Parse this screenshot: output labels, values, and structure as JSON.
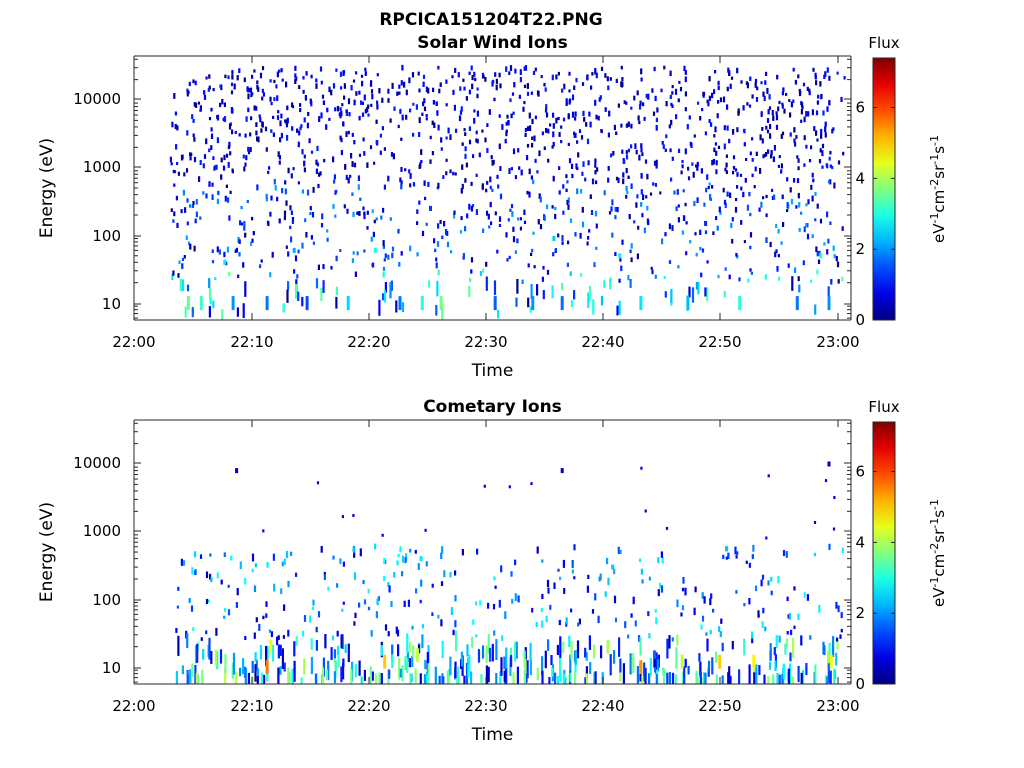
{
  "figure": {
    "title": "RPCICA151204T22.PNG"
  },
  "chart_data": [
    {
      "type": "heatmap",
      "title": "Solar Wind Ions",
      "xlabel": "Time",
      "ylabel": "Energy (eV)",
      "x_ticks": [
        "22:00",
        "22:10",
        "22:20",
        "22:30",
        "22:40",
        "22:50",
        "23:00"
      ],
      "x_range_minutes": [
        0,
        61
      ],
      "y_ticks": [
        "10",
        "100",
        "1000",
        "10000"
      ],
      "y_range_log10": [
        0.75,
        4.65
      ],
      "y_scale": "log",
      "colorbar": {
        "label": "Flux",
        "units": "eV-1cm-2sr-1s-1",
        "ticks": [
          "0",
          "2",
          "4",
          "6"
        ],
        "range": [
          0,
          7.4
        ],
        "colormap": "jet"
      },
      "data_start_minute": 3,
      "points": [
        {
          "t": 4.5,
          "e": 10,
          "v": 3.5
        },
        {
          "t": 5.6,
          "e": 10,
          "v": 3.2
        },
        {
          "t": 8.3,
          "e": 10,
          "v": 2.0
        },
        {
          "t": 11.2,
          "e": 10,
          "v": 1.8
        },
        {
          "t": 14.6,
          "e": 10,
          "v": 1.5
        },
        {
          "t": 18.1,
          "e": 10,
          "v": 2.5
        },
        {
          "t": 22.5,
          "e": 10,
          "v": 1.8
        },
        {
          "t": 24.4,
          "e": 10,
          "v": 3.0
        },
        {
          "t": 26.0,
          "e": 10,
          "v": 3.6
        },
        {
          "t": 30.6,
          "e": 10,
          "v": 1.6
        },
        {
          "t": 33.8,
          "e": 10,
          "v": 2.0
        },
        {
          "t": 36.3,
          "e": 10,
          "v": 1.7
        },
        {
          "t": 43.0,
          "e": 10,
          "v": 2.6
        },
        {
          "t": 47.0,
          "e": 10,
          "v": 2.3
        },
        {
          "t": 51.4,
          "e": 10,
          "v": 3.0
        },
        {
          "t": 56.3,
          "e": 10,
          "v": 1.8
        },
        {
          "t": 59.0,
          "e": 10,
          "v": 2.0
        },
        {
          "t": 7.6,
          "e": 40,
          "v": 2.6
        },
        {
          "t": 13.5,
          "e": 60,
          "v": 2.2
        },
        {
          "t": 20.4,
          "e": 60,
          "v": 2.9
        },
        {
          "t": 35.6,
          "e": 90,
          "v": 2.4
        },
        {
          "t": 41.2,
          "e": 50,
          "v": 2.7
        },
        {
          "t": 58.3,
          "e": 50,
          "v": 3.1
        },
        {
          "t": 25.1,
          "e": 250,
          "v": 1.3
        },
        {
          "t": 37.4,
          "e": 3000,
          "v": 0.6
        },
        {
          "t": 48.5,
          "e": 150,
          "v": 1.2
        }
      ]
    },
    {
      "type": "heatmap",
      "title": "Cometary Ions",
      "xlabel": "Time",
      "ylabel": "Energy (eV)",
      "x_ticks": [
        "22:00",
        "22:10",
        "22:20",
        "22:30",
        "22:40",
        "22:50",
        "23:00"
      ],
      "x_range_minutes": [
        0,
        61
      ],
      "y_ticks": [
        "10",
        "100",
        "1000",
        "10000"
      ],
      "y_range_log10": [
        0.75,
        4.65
      ],
      "y_scale": "log",
      "colorbar": {
        "label": "Flux",
        "units": "eV-1cm-2sr-1s-1",
        "ticks": [
          "0",
          "2",
          "4",
          "6"
        ],
        "range": [
          0,
          7.4
        ],
        "colormap": "jet"
      },
      "data_start_minute": 3,
      "points": [
        {
          "t": 11.2,
          "e": 10,
          "v": 5.6
        },
        {
          "t": 11.5,
          "e": 20,
          "v": 4.6
        },
        {
          "t": 21.2,
          "e": 12,
          "v": 5.0
        },
        {
          "t": 24.0,
          "e": 15,
          "v": 4.2
        },
        {
          "t": 43.0,
          "e": 10,
          "v": 5.4
        },
        {
          "t": 49.7,
          "e": 12,
          "v": 5.0
        },
        {
          "t": 52.6,
          "e": 12,
          "v": 4.7
        },
        {
          "t": 59.2,
          "e": 12,
          "v": 4.5
        },
        {
          "t": 46.5,
          "e": 12,
          "v": 4.2
        },
        {
          "t": 40.2,
          "e": 20,
          "v": 4.0
        },
        {
          "t": 24.3,
          "e": 400,
          "v": 2.6
        },
        {
          "t": 40.6,
          "e": 300,
          "v": 2.4
        },
        {
          "t": 8.6,
          "e": 8000,
          "v": 0.5
        },
        {
          "t": 59.0,
          "e": 10000,
          "v": 0.5
        },
        {
          "t": 36.3,
          "e": 8000,
          "v": 0.5
        }
      ]
    }
  ]
}
